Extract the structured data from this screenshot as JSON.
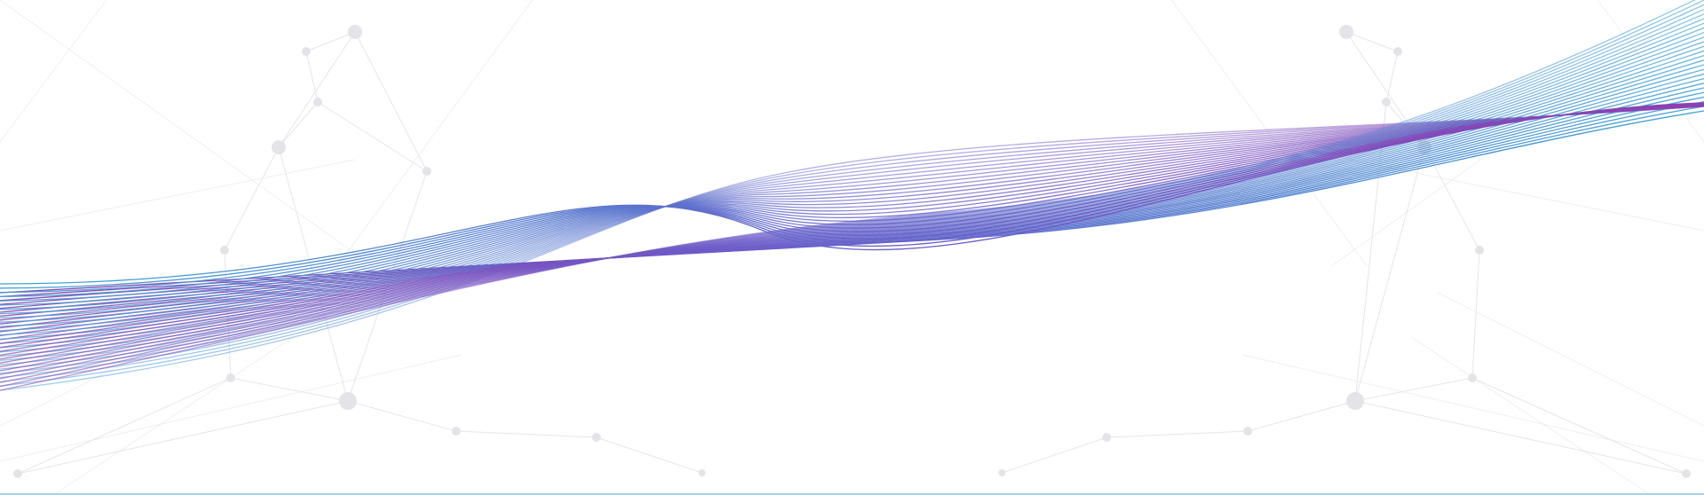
{
  "background": {
    "color": "#ffffff",
    "network_line_color": "#e6e6ea",
    "network_node_color": "#e4e4e8"
  },
  "wave": {
    "line_count": 26,
    "gradient_start": "#8e3fb0",
    "gradient_mid": "#6a5cc9",
    "gradient_end": "#3ea3d6"
  },
  "bottom_rule": {
    "color": "#9ed6e8"
  }
}
